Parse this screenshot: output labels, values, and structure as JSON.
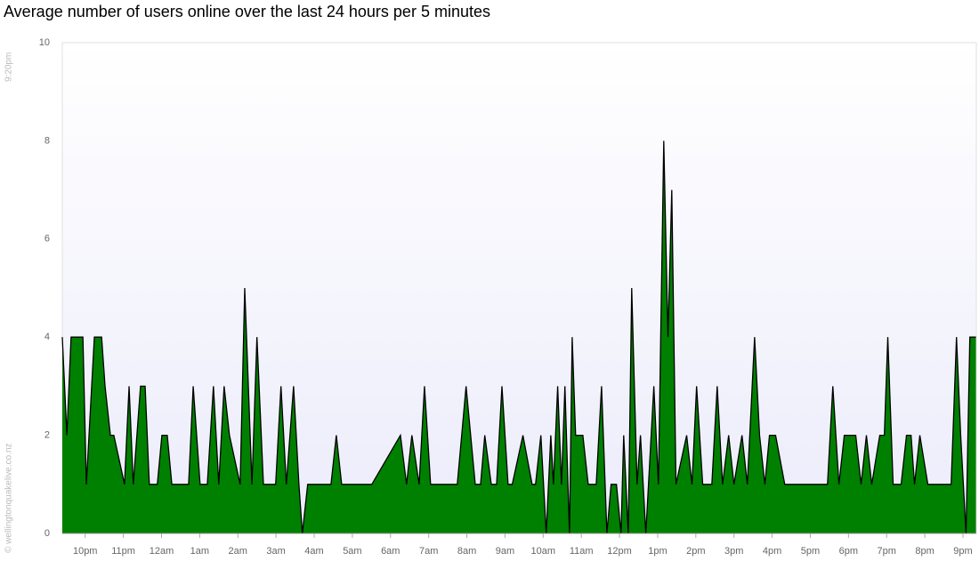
{
  "chart_data": {
    "type": "area",
    "title": "Average number of users online over the last 24 hours per 5 minutes",
    "annotations": [
      "9:20pm",
      "© wellingtonquakelive.co.nz"
    ],
    "color": "#008000",
    "line_color": "#000000",
    "grid": false,
    "ylim": [
      0,
      10
    ],
    "yticks": [
      0,
      2,
      4,
      6,
      8,
      10
    ],
    "xlim": [
      21.4,
      45.35
    ],
    "xticks": [
      {
        "value": 22,
        "label": "10pm"
      },
      {
        "value": 23,
        "label": "11pm"
      },
      {
        "value": 24,
        "label": "12am"
      },
      {
        "value": 25,
        "label": "1am"
      },
      {
        "value": 26,
        "label": "2am"
      },
      {
        "value": 27,
        "label": "3am"
      },
      {
        "value": 28,
        "label": "4am"
      },
      {
        "value": 29,
        "label": "5am"
      },
      {
        "value": 30,
        "label": "6am"
      },
      {
        "value": 31,
        "label": "7am"
      },
      {
        "value": 32,
        "label": "8am"
      },
      {
        "value": 33,
        "label": "9am"
      },
      {
        "value": 34,
        "label": "10am"
      },
      {
        "value": 35,
        "label": "11am"
      },
      {
        "value": 36,
        "label": "12pm"
      },
      {
        "value": 37,
        "label": "1pm"
      },
      {
        "value": 38,
        "label": "2pm"
      },
      {
        "value": 39,
        "label": "3pm"
      },
      {
        "value": 40,
        "label": "4pm"
      },
      {
        "value": 41,
        "label": "5pm"
      },
      {
        "value": 42,
        "label": "6pm"
      },
      {
        "value": 43,
        "label": "7pm"
      },
      {
        "value": 44,
        "label": "8pm"
      },
      {
        "value": 45,
        "label": "9pm"
      }
    ],
    "x": [
      21.4,
      21.52,
      21.63,
      21.94,
      22.03,
      22.24,
      22.43,
      22.52,
      22.66,
      22.75,
      23.03,
      23.15,
      23.26,
      23.45,
      23.57,
      23.68,
      23.89,
      24.01,
      24.15,
      24.27,
      24.71,
      24.83,
      25.01,
      25.2,
      25.36,
      25.5,
      25.64,
      25.78,
      26.06,
      26.18,
      26.37,
      26.5,
      26.67,
      26.99,
      27.13,
      27.27,
      27.46,
      27.6,
      27.69,
      27.83,
      28.44,
      28.58,
      28.72,
      29.51,
      30.26,
      30.42,
      30.56,
      30.75,
      30.89,
      31.05,
      31.75,
      31.98,
      32.22,
      32.36,
      32.47,
      32.64,
      32.78,
      32.92,
      33.08,
      33.19,
      33.47,
      33.71,
      33.8,
      33.94,
      34.08,
      34.2,
      34.27,
      34.38,
      34.48,
      34.57,
      34.69,
      34.76,
      34.85,
      35.04,
      35.18,
      35.39,
      35.53,
      35.67,
      35.78,
      35.92,
      36.04,
      36.11,
      36.23,
      36.32,
      36.46,
      36.55,
      36.69,
      36.9,
      37.02,
      37.16,
      37.27,
      37.37,
      37.48,
      37.76,
      37.9,
      38.02,
      38.18,
      38.42,
      38.56,
      38.7,
      38.86,
      39.0,
      39.21,
      39.35,
      39.54,
      39.67,
      39.81,
      39.93,
      40.09,
      40.33,
      41.45,
      41.59,
      41.75,
      41.89,
      42.19,
      42.33,
      42.47,
      42.61,
      42.82,
      42.94,
      43.03,
      43.17,
      43.38,
      43.52,
      43.64,
      43.73,
      43.87,
      44.08,
      44.69,
      44.83,
      44.94,
      45.08,
      45.18,
      45.34
    ],
    "values": [
      4,
      2,
      4,
      4,
      1,
      4,
      4,
      3,
      2,
      2,
      1,
      3,
      1,
      3,
      3,
      1,
      1,
      2,
      2,
      1,
      1,
      3,
      1,
      1,
      3,
      1,
      3,
      2,
      1,
      5,
      1,
      4,
      1,
      1,
      3,
      1,
      3,
      1,
      0,
      1,
      1,
      2,
      1,
      1,
      2,
      1,
      2,
      1,
      3,
      1,
      1,
      3,
      1,
      1,
      2,
      1,
      1,
      3,
      1,
      1,
      2,
      1,
      1,
      2,
      0,
      2,
      1,
      3,
      1,
      3,
      0,
      4,
      2,
      2,
      1,
      1,
      3,
      0,
      1,
      1,
      0,
      2,
      0,
      5,
      1,
      2,
      0,
      3,
      1,
      8,
      4,
      7,
      1,
      2,
      1,
      3,
      1,
      1,
      3,
      1,
      2,
      1,
      2,
      1,
      4,
      2,
      1,
      2,
      2,
      1,
      1,
      3,
      1,
      2,
      2,
      1,
      2,
      1,
      2,
      2,
      4,
      1,
      1,
      2,
      2,
      1,
      2,
      1,
      1,
      4,
      2,
      0,
      4,
      4
    ]
  }
}
